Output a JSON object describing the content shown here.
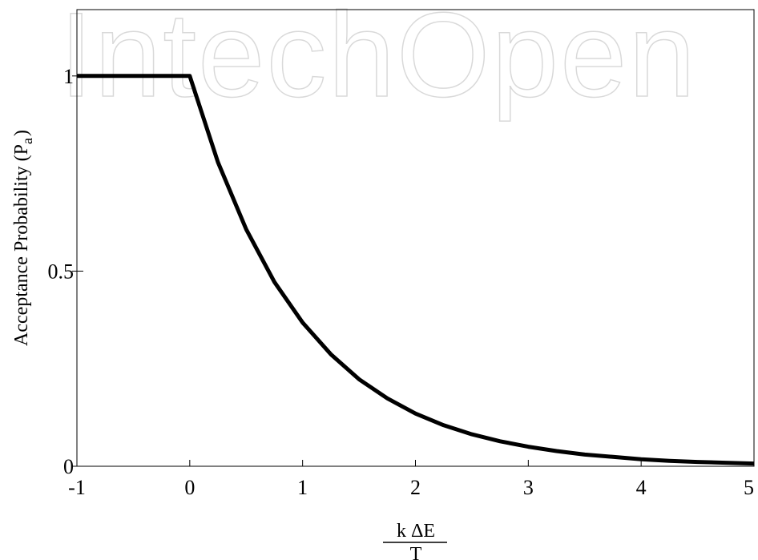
{
  "watermark": {
    "text": "IntechOpen"
  },
  "chart_data": {
    "type": "line",
    "x": [
      -1,
      -0.5,
      0,
      0.25,
      0.5,
      0.75,
      1,
      1.25,
      1.5,
      1.75,
      2,
      2.25,
      2.5,
      2.75,
      3,
      3.25,
      3.5,
      3.75,
      4,
      4.25,
      4.5,
      4.75,
      5
    ],
    "y": [
      1,
      1,
      1,
      0.779,
      0.607,
      0.472,
      0.368,
      0.287,
      0.223,
      0.174,
      0.135,
      0.105,
      0.082,
      0.064,
      0.05,
      0.039,
      0.03,
      0.024,
      0.018,
      0.014,
      0.011,
      0.009,
      0.007
    ],
    "xlim": [
      -1,
      5
    ],
    "ylim": [
      0,
      1.17
    ],
    "xticks": [
      "-1",
      "0",
      "1",
      "2",
      "3",
      "4",
      "5"
    ],
    "yticks": [
      "0",
      "0.5",
      "1"
    ],
    "ylabel": "Acceptance Probability (P",
    "ylabel_sub": "a",
    "ylabel_close": ")",
    "xlabel_numerator": "k ΔE",
    "xlabel_denominator": "T",
    "grid": false,
    "line_color": "#000000"
  }
}
